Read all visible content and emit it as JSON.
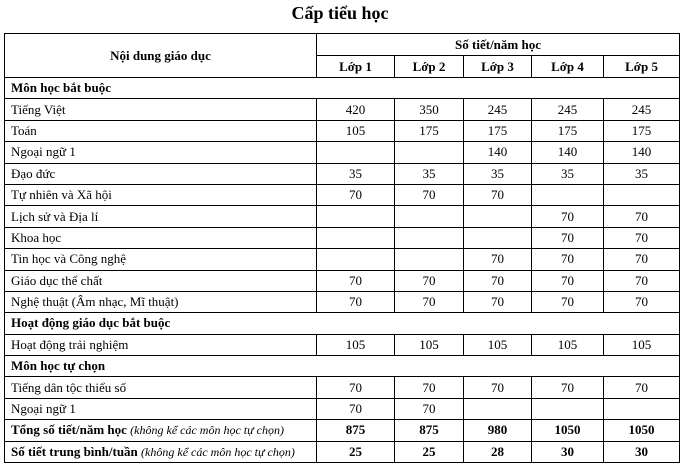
{
  "title": "Cấp tiểu học",
  "header": {
    "content_col": "Nội dung giáo dục",
    "periods_group": "Số tiết/năm học",
    "grades": [
      "Lớp 1",
      "Lớp 2",
      "Lớp 3",
      "Lớp 4",
      "Lớp 5"
    ]
  },
  "sections": [
    {
      "label": "Môn học bắt buộc",
      "rows": [
        {
          "name": "Tiếng Việt",
          "values": [
            "420",
            "350",
            "245",
            "245",
            "245"
          ]
        },
        {
          "name": "Toán",
          "values": [
            "105",
            "175",
            "175",
            "175",
            "175"
          ]
        },
        {
          "name": "Ngoại ngữ 1",
          "values": [
            "",
            "",
            "140",
            "140",
            "140"
          ]
        },
        {
          "name": "Đạo đức",
          "values": [
            "35",
            "35",
            "35",
            "35",
            "35"
          ]
        },
        {
          "name": "Tự nhiên và Xã hội",
          "values": [
            "70",
            "70",
            "70",
            "",
            ""
          ]
        },
        {
          "name": "Lịch sử và Địa lí",
          "values": [
            "",
            "",
            "",
            "70",
            "70"
          ]
        },
        {
          "name": "Khoa học",
          "values": [
            "",
            "",
            "",
            "70",
            "70"
          ]
        },
        {
          "name": "Tin học và Công nghệ",
          "values": [
            "",
            "",
            "70",
            "70",
            "70"
          ]
        },
        {
          "name": "Giáo dục thể chất",
          "values": [
            "70",
            "70",
            "70",
            "70",
            "70"
          ]
        },
        {
          "name": "Nghệ thuật (Âm nhạc, Mĩ thuật)",
          "values": [
            "70",
            "70",
            "70",
            "70",
            "70"
          ]
        }
      ]
    },
    {
      "label": "Hoạt động giáo dục bắt buộc",
      "rows": [
        {
          "name": "Hoạt động trải nghiệm",
          "values": [
            "105",
            "105",
            "105",
            "105",
            "105"
          ]
        }
      ]
    },
    {
      "label": "Môn học tự chọn",
      "rows": [
        {
          "name": "Tiếng dân tộc thiểu số",
          "values": [
            "70",
            "70",
            "70",
            "70",
            "70"
          ]
        },
        {
          "name": "Ngoại ngữ 1",
          "values": [
            "70",
            "70",
            "",
            "",
            ""
          ]
        }
      ]
    }
  ],
  "totals": [
    {
      "label": "Tổng số tiết/năm học",
      "note": "(không kể các môn học tự chọn)",
      "values": [
        "875",
        "875",
        "980",
        "1050",
        "1050"
      ]
    },
    {
      "label": "Số tiết trung bình/tuần",
      "note": "(không kể các môn học tự chọn)",
      "values": [
        "25",
        "25",
        "28",
        "30",
        "30"
      ]
    }
  ]
}
